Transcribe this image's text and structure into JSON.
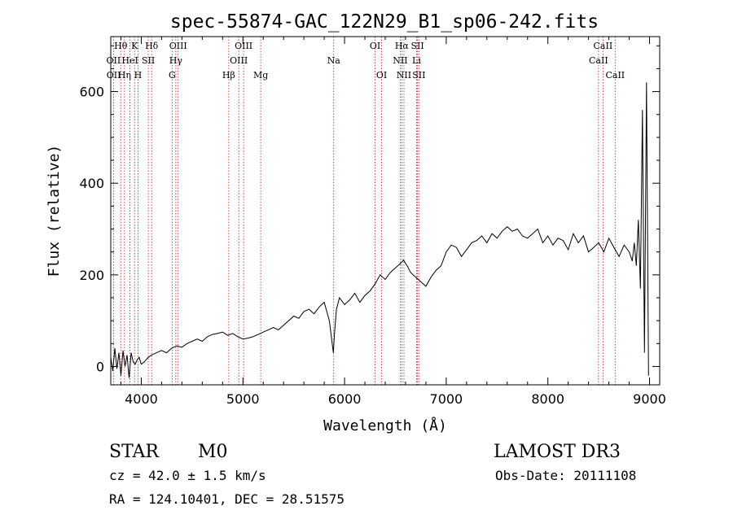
{
  "chart_data": {
    "type": "line",
    "title": "spec-55874-GAC_122N29_B1_sp06-242.fits",
    "xlabel": "Wavelength (Å)",
    "ylabel": "Flux (relative)",
    "xlim": [
      3700,
      9100
    ],
    "ylim": [
      -40,
      720
    ],
    "xticks": [
      4000,
      5000,
      6000,
      7000,
      8000,
      9000
    ],
    "yticks": [
      0,
      200,
      400,
      600
    ],
    "xtick_labels": [
      "4000",
      "5000",
      "6000",
      "7000",
      "8000",
      "9000"
    ],
    "ytick_labels": [
      "0",
      "200",
      "400",
      "600"
    ],
    "series": [
      {
        "name": "spectrum",
        "x": [
          3700,
          3720,
          3740,
          3760,
          3780,
          3800,
          3820,
          3840,
          3860,
          3880,
          3900,
          3920,
          3940,
          3960,
          3980,
          4000,
          4030,
          4060,
          4100,
          4150,
          4200,
          4250,
          4300,
          4350,
          4400,
          4450,
          4500,
          4550,
          4600,
          4650,
          4700,
          4750,
          4800,
          4850,
          4900,
          4950,
          5000,
          5050,
          5100,
          5150,
          5200,
          5250,
          5300,
          5350,
          5400,
          5450,
          5500,
          5550,
          5600,
          5650,
          5700,
          5750,
          5800,
          5850,
          5890,
          5900,
          5920,
          5950,
          6000,
          6050,
          6100,
          6150,
          6200,
          6250,
          6300,
          6350,
          6400,
          6450,
          6500,
          6550,
          6580,
          6620,
          6650,
          6700,
          6750,
          6800,
          6850,
          6900,
          6950,
          7000,
          7050,
          7100,
          7150,
          7200,
          7250,
          7300,
          7350,
          7400,
          7450,
          7500,
          7550,
          7600,
          7650,
          7700,
          7750,
          7800,
          7850,
          7900,
          7950,
          8000,
          8050,
          8100,
          8150,
          8200,
          8250,
          8300,
          8350,
          8400,
          8450,
          8500,
          8550,
          8600,
          8650,
          8700,
          8750,
          8800,
          8830,
          8850,
          8870,
          8890,
          8910,
          8930,
          8950,
          8970,
          8990
        ],
        "y": [
          20,
          -10,
          40,
          -5,
          30,
          -20,
          35,
          0,
          25,
          -25,
          30,
          10,
          5,
          15,
          20,
          5,
          10,
          18,
          25,
          30,
          35,
          30,
          40,
          45,
          42,
          50,
          55,
          60,
          55,
          65,
          70,
          72,
          75,
          68,
          72,
          65,
          60,
          62,
          65,
          70,
          75,
          80,
          85,
          80,
          90,
          100,
          110,
          105,
          120,
          125,
          115,
          130,
          140,
          100,
          30,
          70,
          125,
          150,
          135,
          145,
          160,
          140,
          155,
          165,
          180,
          200,
          190,
          205,
          215,
          225,
          232,
          218,
          205,
          195,
          185,
          175,
          195,
          210,
          220,
          250,
          265,
          260,
          240,
          255,
          270,
          275,
          285,
          270,
          290,
          280,
          295,
          305,
          295,
          300,
          285,
          280,
          290,
          300,
          270,
          285,
          265,
          280,
          275,
          255,
          290,
          270,
          285,
          250,
          260,
          270,
          250,
          280,
          260,
          240,
          265,
          250,
          230,
          270,
          220,
          320,
          170,
          560,
          30,
          620,
          -20
        ]
      }
    ],
    "line_labels": [
      {
        "text": "Hθ",
        "wl": 3798,
        "row": 1
      },
      {
        "text": "OII",
        "wl": 3727,
        "row": 2
      },
      {
        "text": "OII",
        "wl": 3729,
        "row": 3
      },
      {
        "text": "Hη",
        "wl": 3835,
        "row": 3
      },
      {
        "text": "HeI",
        "wl": 3889,
        "row": 2
      },
      {
        "text": "K",
        "wl": 3934,
        "row": 1
      },
      {
        "text": "SII",
        "wl": 4069,
        "row": 2
      },
      {
        "text": "H",
        "wl": 3968,
        "row": 3
      },
      {
        "text": "Hδ",
        "wl": 4102,
        "row": 1
      },
      {
        "text": "OIII",
        "wl": 4363,
        "row": 1
      },
      {
        "text": "Hγ",
        "wl": 4340,
        "row": 2
      },
      {
        "text": "G",
        "wl": 4304,
        "row": 3
      },
      {
        "text": "OIII",
        "wl": 5007,
        "row": 1
      },
      {
        "text": "OIII",
        "wl": 4959,
        "row": 2
      },
      {
        "text": "Hβ",
        "wl": 4861,
        "row": 3
      },
      {
        "text": "Mg",
        "wl": 5175,
        "row": 3
      },
      {
        "text": "Na",
        "wl": 5893,
        "row": 2
      },
      {
        "text": "OI",
        "wl": 6300,
        "row": 1
      },
      {
        "text": "OI",
        "wl": 6364,
        "row": 3
      },
      {
        "text": "Hα",
        "wl": 6563,
        "row": 1
      },
      {
        "text": "NII",
        "wl": 6548,
        "row": 2
      },
      {
        "text": "NII",
        "wl": 6584,
        "row": 3
      },
      {
        "text": "SII",
        "wl": 6717,
        "row": 1
      },
      {
        "text": "Li",
        "wl": 6708,
        "row": 2
      },
      {
        "text": "SII",
        "wl": 6731,
        "row": 3
      },
      {
        "text": "CaII",
        "wl": 8542,
        "row": 1
      },
      {
        "text": "CaII",
        "wl": 8498,
        "row": 2
      },
      {
        "text": "CaII",
        "wl": 8662,
        "row": 3
      }
    ],
    "line_wavelengths": [
      3727,
      3798,
      3835,
      3889,
      3934,
      3968,
      4069,
      4102,
      4304,
      4340,
      4363,
      4861,
      4959,
      5007,
      5175,
      5893,
      6300,
      6364,
      6548,
      6563,
      6584,
      6708,
      6717,
      6731,
      8498,
      8542,
      8662
    ]
  },
  "info": {
    "class_label": "STAR",
    "subclass_label": "M0",
    "survey": "LAMOST DR3",
    "redshift": "cz = 42.0 ± 1.5 km/s",
    "obsdate": "Obs-Date: 20111108",
    "coords": "RA = 124.10401, DEC =  28.51575"
  },
  "colors": {
    "spectrum": "#000000",
    "axis": "#000000",
    "line_marker": "#b22222",
    "background": "#ffffff"
  }
}
